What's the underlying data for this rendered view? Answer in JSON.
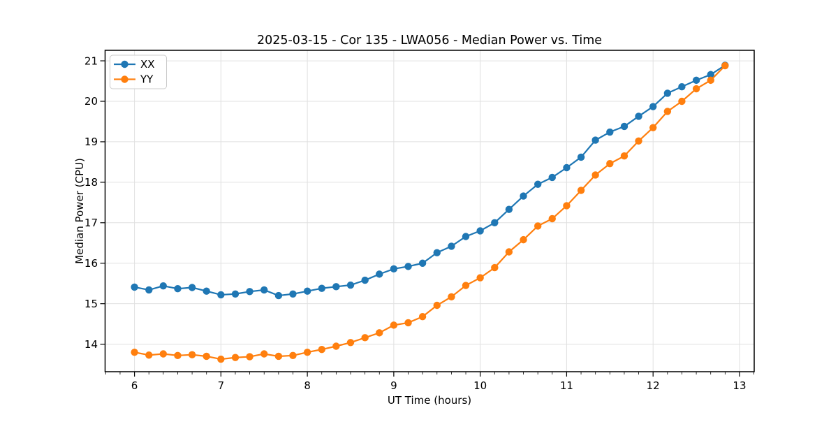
{
  "chart_data": {
    "type": "line",
    "title": "2025-03-15 - Cor 135 - LWA056 - Median Power vs. Time",
    "xlabel": "UT Time (hours)",
    "ylabel": "Median Power (CPU)",
    "xlim": [
      5.66,
      13.17
    ],
    "ylim": [
      13.32,
      21.26
    ],
    "x_ticks": [
      6,
      7,
      8,
      9,
      10,
      11,
      12,
      13
    ],
    "y_ticks": [
      14,
      15,
      16,
      17,
      18,
      19,
      20,
      21
    ],
    "x_minor_step": 0.1666667,
    "grid": true,
    "grid_color": "#e0e0e0",
    "legend_position": "upper-left",
    "marker": "circle",
    "x": [
      6,
      6.167,
      6.333,
      6.5,
      6.667,
      6.833,
      7,
      7.167,
      7.333,
      7.5,
      7.667,
      7.833,
      8,
      8.167,
      8.333,
      8.5,
      8.667,
      8.833,
      9,
      9.167,
      9.333,
      9.5,
      9.667,
      9.833,
      10,
      10.167,
      10.333,
      10.5,
      10.667,
      10.833,
      11,
      11.167,
      11.333,
      11.5,
      11.667,
      11.833,
      12,
      12.167,
      12.333,
      12.5,
      12.667,
      12.833
    ],
    "series": [
      {
        "name": "XX",
        "color": "#1f77b4",
        "values": [
          15.41,
          15.34,
          15.44,
          15.37,
          15.4,
          15.31,
          15.22,
          15.24,
          15.3,
          15.34,
          15.2,
          15.24,
          15.31,
          15.38,
          15.42,
          15.46,
          15.58,
          15.73,
          15.86,
          15.92,
          16.0,
          16.26,
          16.42,
          16.66,
          16.8,
          17.0,
          17.33,
          17.66,
          17.95,
          18.12,
          18.36,
          18.62,
          19.04,
          19.24,
          19.38,
          19.63,
          19.87,
          20.2,
          20.36,
          20.52,
          20.66,
          20.89
        ]
      },
      {
        "name": "YY",
        "color": "#ff7f0e",
        "values": [
          13.8,
          13.73,
          13.76,
          13.72,
          13.74,
          13.7,
          13.63,
          13.67,
          13.69,
          13.76,
          13.7,
          13.72,
          13.8,
          13.87,
          13.95,
          14.04,
          14.16,
          14.28,
          14.47,
          14.53,
          14.68,
          14.96,
          15.17,
          15.45,
          15.64,
          15.89,
          16.28,
          16.58,
          16.92,
          17.1,
          17.42,
          17.8,
          18.18,
          18.46,
          18.65,
          19.02,
          19.35,
          19.75,
          20.0,
          20.31,
          20.52,
          20.88
        ]
      }
    ]
  }
}
